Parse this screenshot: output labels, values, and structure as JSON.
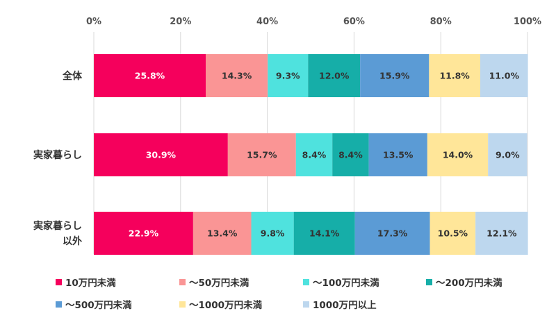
{
  "chart_data": {
    "type": "bar",
    "orientation": "horizontal",
    "stacked": true,
    "percent_stacked": true,
    "title": "",
    "xlabel": "",
    "ylabel": "",
    "xlim": [
      0,
      100
    ],
    "x_ticks": [
      "0%",
      "20%",
      "40%",
      "60%",
      "80%",
      "100%"
    ],
    "categories": [
      {
        "lines": [
          "全体"
        ]
      },
      {
        "lines": [
          "実家暮らし"
        ]
      },
      {
        "lines": [
          "実家暮らし",
          "以外"
        ]
      }
    ],
    "series": [
      {
        "name": "10万円未満",
        "color": "#f5005c",
        "label_color": "#ffffff",
        "values": [
          25.8,
          30.9,
          22.9
        ],
        "labels": [
          "25.8%",
          "30.9%",
          "22.9%"
        ]
      },
      {
        "name": "〜50万円未満",
        "color": "#fa9595",
        "label_color": "#333333",
        "values": [
          14.3,
          15.7,
          13.4
        ],
        "labels": [
          "14.3%",
          "15.7%",
          "13.4%"
        ]
      },
      {
        "name": "〜100万円未満",
        "color": "#4fe2de",
        "label_color": "#333333",
        "values": [
          9.3,
          8.4,
          9.8
        ],
        "labels": [
          "9.3%",
          "8.4%",
          "9.8%"
        ]
      },
      {
        "name": "〜200万円未満",
        "color": "#16aea8",
        "label_color": "#333333",
        "values": [
          12.0,
          8.4,
          14.1
        ],
        "labels": [
          "12.0%",
          "8.4%",
          "14.1%"
        ]
      },
      {
        "name": "〜500万円未満",
        "color": "#5b9bd5",
        "label_color": "#333333",
        "values": [
          15.9,
          13.5,
          17.3
        ],
        "labels": [
          "15.9%",
          "13.5%",
          "17.3%"
        ]
      },
      {
        "name": "〜1000万円未満",
        "color": "#ffe699",
        "label_color": "#333333",
        "values": [
          11.8,
          14.0,
          10.5
        ],
        "labels": [
          "11.8%",
          "14.0%",
          "10.5%"
        ]
      },
      {
        "name": "1000万円以上",
        "color": "#bdd7ee",
        "label_color": "#333333",
        "values": [
          11.0,
          9.0,
          12.1
        ],
        "labels": [
          "11.0%",
          "9.0%",
          "12.1%"
        ]
      }
    ],
    "legend_position": "bottom",
    "grid": true
  }
}
